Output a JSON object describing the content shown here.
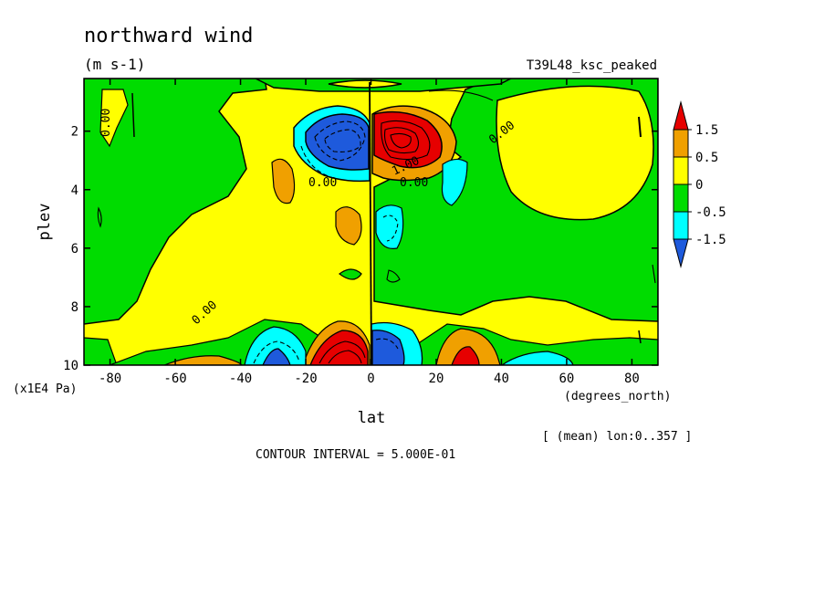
{
  "chart_data": {
    "type": "heatmap",
    "title": "northward wind",
    "units": "(m s-1)",
    "experiment": "T39L48_ksc_peaked",
    "xlabel": "lat",
    "xunits": "(degrees_north)",
    "ylabel": "plev",
    "yunits": "(x1E4 Pa)",
    "xlim": [
      -88,
      88
    ],
    "ylim": [
      0.2,
      10
    ],
    "y_inverted": true,
    "x_ticks": [
      -80,
      -60,
      -40,
      -20,
      0,
      20,
      40,
      60,
      80
    ],
    "y_ticks": [
      2,
      4,
      6,
      8,
      10
    ],
    "contour_interval_text": "CONTOUR INTERVAL = 5.000E-01",
    "averaging_text": "[ (mean) lon:0..357 ]",
    "contour_labels": [
      "0.00",
      "0.00",
      "0.00",
      "0.00",
      "0.00",
      "1.00",
      "0.00"
    ],
    "colorbar": {
      "labels": [
        "1.5",
        "0.5",
        "0",
        "-0.5",
        "-1.5"
      ],
      "levels": [
        -1.5,
        -1.0,
        -0.5,
        0,
        0.5,
        1.0,
        1.5
      ],
      "colors": [
        "#1e5adc",
        "#00ffff",
        "#00dc00",
        "#ffff00",
        "#f0a000",
        "#e60000"
      ]
    },
    "features": [
      {
        "name": "upper-south-negative-jet",
        "lat": -8,
        "plev": 2.2,
        "value": -2.5
      },
      {
        "name": "upper-north-positive-jet",
        "lat": 7,
        "plev": 2.2,
        "value": 3.0
      },
      {
        "name": "lower-south-positive-cell",
        "lat": -6,
        "plev": 9.6,
        "value": 3.0
      },
      {
        "name": "lower-north-negative-cell",
        "lat": 7,
        "plev": 9.6,
        "value": -2.5
      },
      {
        "name": "lower-south-negative-cell",
        "lat": -28,
        "plev": 9.6,
        "value": -1.7
      },
      {
        "name": "lower-north-positive-cell",
        "lat": 28,
        "plev": 9.6,
        "value": 1.7
      }
    ]
  }
}
